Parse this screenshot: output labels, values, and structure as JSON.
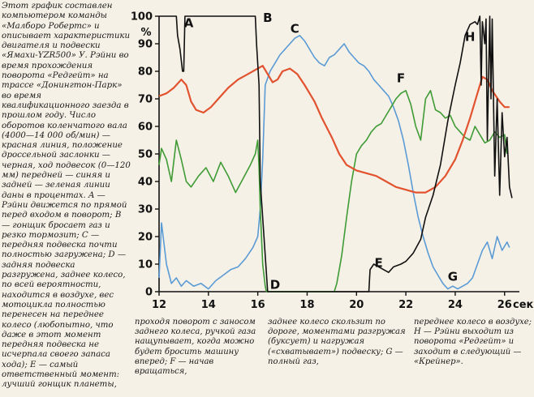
{
  "captions": {
    "left": "Этот график составлен компьютером команды «Малборо Робертс» и описывает характеристики двигателя и подвески «Ямахи-YZR500» У. Рэйни во время прохождения поворота «Редгейт» на трассе «Донингтон-Парк» во время квалификационного заезда в прошлом году. Число оборотов коленчатого вала (4000—14 000 об/мин) — красная линия, положение дроссельной заслонки — черная, ход подвесок (0—120 мм) передней — синяя и задней — зеленая линии даны в процентах. A — Рэйни движется по прямой перед входом в поворот; B — гонщик бросает газ и резко тормозит; C — передняя подвеска почти полностью загружена; D — задняя подвеска разгружена, заднее колесо, по всей вероятности, находится в воздухе, вес мотоцикла полностью перенесен на переднее колесо (любопытно, что даже в этот момент передняя подвеска не исчерпала своего запаса хода); E — самый ответственный момент: лучший гонщик планеты,",
    "bottom_1": "проходя поворот с заносом заднего колеса, ручкой газа нащупывает, когда можно будет бросить машину вперед; F — начав вращаться,",
    "bottom_2": "заднее колесо скользит по дороге, моментами разгружая (буксует) и нагружая («схватывает») подвеску; G — полный газ,",
    "bottom_3": "переднее колесо в воздухе; H — Рэйни выходит из поворота «Редгейт» и заходит в следующий — «Крейнер»."
  },
  "chart_data": {
    "type": "line",
    "xlabel": "сек",
    "ylabel": "%",
    "xlim": [
      12,
      26.6
    ],
    "ylim": [
      0,
      100
    ],
    "x_ticks": [
      12,
      14,
      16,
      18,
      20,
      22,
      24,
      26
    ],
    "y_ticks": [
      0,
      10,
      20,
      30,
      40,
      50,
      60,
      70,
      80,
      90,
      100
    ],
    "grid": false,
    "colors": {
      "rpm": "#e2522f",
      "throttle": "#111111",
      "front": "#5b9bd5",
      "rear": "#3f9b35"
    },
    "annotations": [
      {
        "label": "A",
        "x": 13.2,
        "y": 96
      },
      {
        "label": "B",
        "x": 16.4,
        "y": 98
      },
      {
        "label": "C",
        "x": 17.5,
        "y": 94
      },
      {
        "label": "D",
        "x": 16.7,
        "y": 1
      },
      {
        "label": "E",
        "x": 20.9,
        "y": 9
      },
      {
        "label": "F",
        "x": 21.8,
        "y": 76
      },
      {
        "label": "G",
        "x": 23.9,
        "y": 4
      },
      {
        "label": "H",
        "x": 24.6,
        "y": 91
      }
    ],
    "series": [
      {
        "key": "rpm",
        "x": [
          12,
          12.3,
          12.6,
          12.9,
          13.1,
          13.3,
          13.5,
          13.8,
          14.1,
          14.4,
          14.8,
          15.2,
          15.6,
          16,
          16.2,
          16.4,
          16.6,
          16.8,
          17,
          17.3,
          17.6,
          17.9,
          18.3,
          18.6,
          19,
          19.3,
          19.6,
          20,
          20.4,
          20.8,
          21.2,
          21.6,
          22,
          22.4,
          22.8,
          23.2,
          23.6,
          24,
          24.3,
          24.6,
          24.9,
          25.1,
          25.3,
          25.5,
          25.8,
          26,
          26.2
        ],
        "y": [
          71,
          72,
          74,
          77,
          75,
          69,
          66,
          65,
          67,
          70,
          74,
          77,
          79,
          81,
          82,
          79,
          76,
          77,
          80,
          81,
          79,
          75,
          69,
          63,
          56,
          50,
          46,
          44,
          43,
          42,
          40,
          38,
          37,
          36,
          36,
          38,
          42,
          48,
          55,
          63,
          72,
          78,
          77,
          73,
          69,
          67,
          67
        ]
      },
      {
        "key": "throttle",
        "x": [
          12,
          12.7,
          12.75,
          12.85,
          12.95,
          13,
          13.05,
          15.9,
          15.95,
          16.05,
          16.1,
          16.4,
          20.5,
          20.55,
          20.7,
          20.9,
          21.1,
          21.3,
          21.5,
          21.8,
          22,
          22.3,
          22.6,
          22.8,
          23.1,
          23.4,
          23.7,
          24,
          24.2,
          24.4,
          24.6,
          24.8,
          24.9,
          25,
          25.05,
          25.1,
          25.2,
          25.25,
          25.3,
          25.4,
          25.45,
          25.5,
          25.6,
          25.7,
          25.8,
          25.9,
          26,
          26.1,
          26.2,
          26.3
        ],
        "y": [
          100,
          100,
          93,
          88,
          80,
          80,
          100,
          100,
          90,
          75,
          40,
          0,
          0,
          8,
          10,
          9,
          8,
          7,
          9,
          10,
          11,
          14,
          19,
          27,
          35,
          46,
          62,
          75,
          83,
          93,
          97,
          98,
          97,
          100,
          75,
          98,
          90,
          99,
          55,
          100,
          70,
          99,
          42,
          70,
          35,
          65,
          49,
          56,
          38,
          34
        ]
      },
      {
        "key": "front",
        "x": [
          12,
          12.1,
          12.3,
          12.5,
          12.7,
          12.9,
          13.1,
          13.4,
          13.7,
          14,
          14.3,
          14.6,
          14.9,
          15.2,
          15.5,
          15.8,
          16,
          16.1,
          16.2,
          16.3,
          16.5,
          16.7,
          16.9,
          17.1,
          17.3,
          17.5,
          17.7,
          17.9,
          18.1,
          18.3,
          18.5,
          18.7,
          18.9,
          19.1,
          19.3,
          19.5,
          19.7,
          19.9,
          20.1,
          20.3,
          20.5,
          20.7,
          20.9,
          21.1,
          21.3,
          21.5,
          21.7,
          21.9,
          22.1,
          22.3,
          22.5,
          22.7,
          22.9,
          23.1,
          23.3,
          23.5,
          23.7,
          23.9,
          24.1,
          24.3,
          24.5,
          24.7,
          24.9,
          25.1,
          25.3,
          25.5,
          25.7,
          25.9,
          26.1,
          26.2
        ],
        "y": [
          5,
          25,
          10,
          3,
          5,
          2,
          4,
          2,
          3,
          1,
          4,
          6,
          8,
          9,
          12,
          16,
          20,
          30,
          48,
          75,
          80,
          83,
          86,
          88,
          90,
          92,
          93,
          91,
          88,
          85,
          83,
          82,
          85,
          86,
          88,
          90,
          87,
          85,
          83,
          82,
          80,
          77,
          75,
          73,
          71,
          67,
          62,
          55,
          46,
          36,
          27,
          20,
          14,
          9,
          6,
          3,
          1,
          2,
          1,
          2,
          3,
          5,
          10,
          15,
          18,
          12,
          20,
          15,
          18,
          16
        ]
      },
      {
        "key": "rear",
        "x": [
          12,
          12.1,
          12.3,
          12.5,
          12.7,
          12.9,
          13.1,
          13.3,
          13.6,
          13.9,
          14.2,
          14.5,
          14.8,
          15.1,
          15.4,
          15.7,
          15.9,
          16,
          16.05,
          16.1,
          16.2,
          16.3,
          16.35,
          19.1,
          19.2,
          19.4,
          19.6,
          19.8,
          20,
          20.2,
          20.4,
          20.6,
          20.8,
          21,
          21.2,
          21.4,
          21.6,
          21.8,
          22,
          22.2,
          22.4,
          22.6,
          22.8,
          23,
          23.2,
          23.4,
          23.6,
          23.8,
          24,
          24.2,
          24.4,
          24.6,
          24.8,
          25,
          25.2,
          25.4,
          25.6,
          25.8,
          26,
          26.1
        ],
        "y": [
          46,
          52,
          48,
          40,
          55,
          48,
          40,
          38,
          42,
          45,
          40,
          47,
          42,
          36,
          41,
          46,
          50,
          55,
          45,
          30,
          10,
          2,
          0,
          0,
          3,
          13,
          27,
          40,
          50,
          53,
          55,
          58,
          60,
          61,
          64,
          67,
          70,
          72,
          73,
          68,
          60,
          55,
          70,
          73,
          66,
          65,
          63,
          64,
          60,
          58,
          56,
          55,
          60,
          57,
          54,
          55,
          58,
          56,
          57,
          50
        ]
      }
    ]
  }
}
